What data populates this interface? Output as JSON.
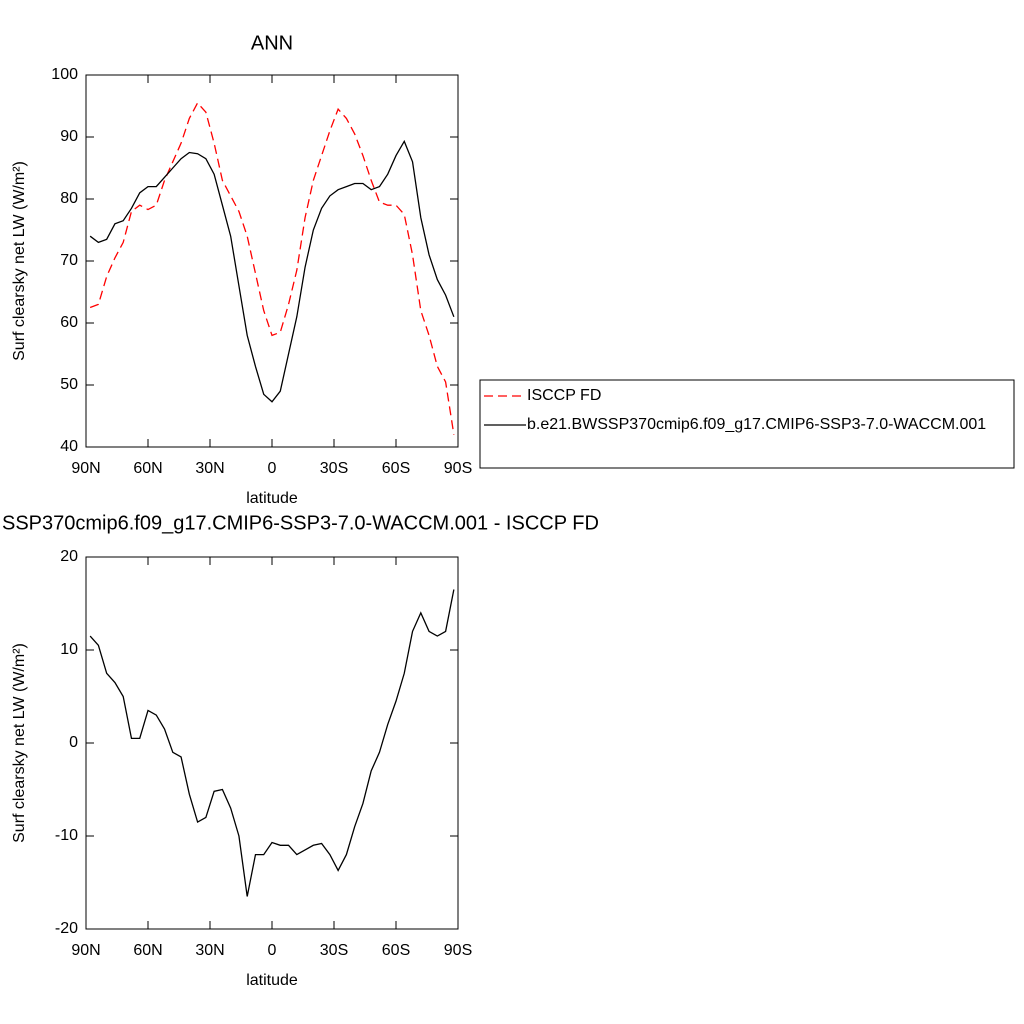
{
  "chart_data": [
    {
      "type": "line",
      "title": "ANN",
      "xlabel": "latitude",
      "ylabel": "Surf clearsky net LW (W/m²)",
      "x": [
        88,
        84,
        80,
        76,
        72,
        68,
        64,
        60,
        56,
        52,
        48,
        44,
        40,
        36,
        32,
        28,
        24,
        20,
        16,
        12,
        8,
        4,
        0,
        -4,
        -8,
        -12,
        -16,
        -20,
        -24,
        -28,
        -32,
        -36,
        -40,
        -44,
        -48,
        -52,
        -56,
        -60,
        -64,
        -68,
        -72,
        -76,
        -80,
        -84,
        -88
      ],
      "xlim": [
        90,
        -90
      ],
      "xticks": [
        {
          "value": 90,
          "label": "90N"
        },
        {
          "value": 60,
          "label": "60N"
        },
        {
          "value": 30,
          "label": "30N"
        },
        0,
        {
          "value": -30,
          "label": "30S"
        },
        {
          "value": -60,
          "label": "60S"
        },
        {
          "value": -90,
          "label": "90S"
        }
      ],
      "ylim": [
        40,
        100
      ],
      "yticks": [
        40,
        50,
        60,
        70,
        80,
        90,
        100
      ],
      "legend": true,
      "series": [
        {
          "name": "ISCCP FD",
          "color": "#ff0000",
          "line_style": "dashed",
          "values": [
            62.5,
            63,
            67.5,
            70.5,
            73,
            78,
            79,
            78.3,
            79,
            83,
            86,
            89,
            93,
            95.5,
            94,
            89,
            83,
            80.5,
            78,
            74,
            68,
            62,
            58,
            58.5,
            63,
            68.5,
            77,
            83,
            87,
            91,
            94.5,
            93,
            90.5,
            87,
            83,
            79.5,
            79,
            79,
            77.5,
            71,
            62,
            58,
            53,
            50.5,
            42
          ]
        },
        {
          "name": "b.e21.BWSSP370cmip6.f09_g17.CMIP6-SSP3-7.0-WACCM.001",
          "color": "#000000",
          "line_style": "solid",
          "values": [
            74,
            73,
            73.5,
            76,
            76.5,
            78.5,
            81,
            82,
            82,
            83.5,
            85,
            86.5,
            87.5,
            87.3,
            86.5,
            84,
            79,
            74,
            66,
            58,
            53,
            48.5,
            47.3,
            49,
            55,
            61,
            69,
            75,
            78.5,
            80.5,
            81.5,
            82,
            82.5,
            82.5,
            81.5,
            82,
            84,
            87,
            89.3,
            86,
            77,
            71,
            67,
            64.5,
            61
          ]
        }
      ]
    },
    {
      "type": "line",
      "title": "SSP370cmip6.f09_g17.CMIP6-SSP3-7.0-WACCM.001 - ISCCP FD",
      "xlabel": "latitude",
      "ylabel": "Surf clearsky net LW (W/m²)",
      "x": [
        88,
        84,
        80,
        76,
        72,
        68,
        64,
        60,
        56,
        52,
        48,
        44,
        40,
        36,
        32,
        28,
        24,
        20,
        16,
        12,
        8,
        4,
        0,
        -4,
        -8,
        -12,
        -16,
        -20,
        -24,
        -28,
        -32,
        -36,
        -40,
        -44,
        -48,
        -52,
        -56,
        -60,
        -64,
        -68,
        -72,
        -76,
        -80,
        -84,
        -88
      ],
      "xlim": [
        90,
        -90
      ],
      "xticks": [
        {
          "value": 90,
          "label": "90N"
        },
        {
          "value": 60,
          "label": "60N"
        },
        {
          "value": 30,
          "label": "30N"
        },
        0,
        {
          "value": -30,
          "label": "30S"
        },
        {
          "value": -60,
          "label": "60S"
        },
        {
          "value": -90,
          "label": "90S"
        }
      ],
      "ylim": [
        -20,
        20
      ],
      "yticks": [
        -20,
        -10,
        0,
        10,
        20
      ],
      "legend": false,
      "series": [
        {
          "color": "#000000",
          "line_style": "solid",
          "values": [
            11.5,
            10.5,
            7.5,
            6.5,
            5,
            0.5,
            0.5,
            3.5,
            3,
            1.5,
            -1,
            -1.5,
            -5.5,
            -8.5,
            -8,
            -5.2,
            -5,
            -7,
            -10,
            -16.5,
            -12,
            -12,
            -10.7,
            -11,
            -11,
            -12,
            -11.5,
            -11,
            -10.8,
            -12,
            -13.7,
            -12,
            -9,
            -6.5,
            -3,
            -1,
            2,
            4.5,
            7.5,
            12,
            14,
            12,
            11.5,
            12,
            16.5
          ]
        }
      ]
    }
  ]
}
